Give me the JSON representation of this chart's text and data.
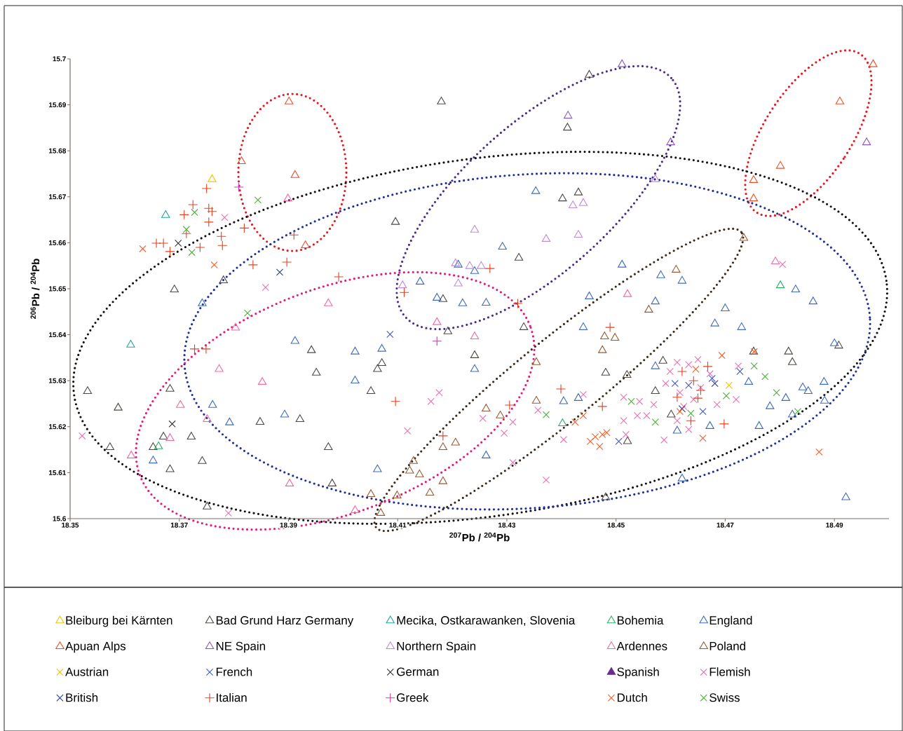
{
  "chart_data": {
    "type": "scatter",
    "xlabel": "$^{207}$Pb / $^{204}$Pb",
    "ylabel": "$^{206}$Pb / $^{204}$Pb",
    "xlim": [
      18.35,
      18.5
    ],
    "ylim": [
      15.6,
      15.7
    ],
    "xticks": [
      18.35,
      18.37,
      18.39,
      18.41,
      18.43,
      18.45,
      18.47,
      18.49
    ],
    "yticks": [
      15.6,
      15.61,
      15.62,
      15.63,
      15.64,
      15.65,
      15.66,
      15.67,
      15.68,
      15.69,
      15.7
    ],
    "grid": false,
    "legend": "bottom",
    "series": [
      {
        "name": "Bleiburg bei Kärnten",
        "color": "#f5c400",
        "marker": "triangle",
        "x": [
          18.376
        ],
        "values": [
          15.6738
        ]
      },
      {
        "name": "Bad Grund Harz Germany",
        "color": "#4d4a45",
        "marker": "triangle",
        "x": [
          18.418,
          18.4451,
          18.4411,
          18.4096,
          18.4402,
          18.4431,
          18.4322,
          18.3781,
          18.3691,
          18.4183,
          18.4192,
          18.4241,
          18.4071,
          18.4063,
          18.4051,
          18.3942,
          18.3951,
          18.3532,
          18.3588,
          18.3683,
          18.3573,
          18.3652,
          18.3671,
          18.3722,
          18.3742,
          18.3683,
          18.3848,
          18.3921,
          18.3973,
          18.398,
          18.3751,
          18.4481,
          18.4481,
          18.4586,
          18.452,
          18.4572,
          18.4601,
          18.4521,
          18.4752,
          18.4816,
          18.4823,
          18.4908,
          18.4331
        ],
        "values": [
          15.6907,
          15.6965,
          15.685,
          15.6645,
          15.6696,
          15.6709,
          15.6567,
          15.6518,
          15.6498,
          15.6477,
          15.6407,
          15.6355,
          15.6338,
          15.6325,
          15.6277,
          15.6366,
          15.6317,
          15.6277,
          15.6241,
          15.6282,
          15.6155,
          15.6155,
          15.6178,
          15.6178,
          15.6125,
          15.6107,
          15.621,
          15.6216,
          15.6155,
          15.6076,
          15.6026,
          15.6317,
          15.6046,
          15.6343,
          15.6312,
          15.6277,
          15.6226,
          15.6168,
          15.6363,
          15.6363,
          15.634,
          15.6376,
          15.6416
        ]
      },
      {
        "name": "Mecika, Ostkarawanken, Slovenia",
        "color": "#1fa59e",
        "marker": "triangle",
        "x": [
          18.3675,
          18.3611
        ],
        "values": [
          15.666,
          15.6378
        ]
      },
      {
        "name": "Bohemia",
        "color": "#2bae6a",
        "marker": "triangle",
        "x": [
          18.3662,
          18.4402,
          18.4801
        ],
        "values": [
          15.6157,
          15.6207,
          15.6507
        ]
      },
      {
        "name": "England",
        "color": "#3e6cc0",
        "marker": "triangle",
        "x": [
          18.4353,
          18.4292,
          18.4211,
          18.4241,
          18.4141,
          18.4219,
          18.4262,
          18.4172,
          18.4451,
          18.444,
          18.4511,
          18.4582,
          18.4621,
          18.4572,
          18.47,
          18.4681,
          18.473,
          18.4572,
          18.4743,
          18.4782,
          18.4811,
          18.4842,
          18.4852,
          18.4881,
          18.4882,
          18.4823,
          18.4762,
          18.4672,
          18.4612,
          18.4621,
          18.4921,
          18.49,
          18.4861,
          18.4829,
          18.3742,
          18.3912,
          18.3761,
          18.3792,
          18.3893,
          18.3652,
          18.4022,
          18.4071,
          18.4022,
          18.4241,
          18.4404,
          18.4431,
          18.4262,
          18.4063
        ],
        "values": [
          15.6712,
          15.6591,
          15.6552,
          15.6538,
          15.6515,
          15.6468,
          15.6469,
          15.648,
          15.6483,
          15.6416,
          15.6552,
          15.6529,
          15.6517,
          15.6472,
          15.6457,
          15.6424,
          15.6416,
          15.6331,
          15.6297,
          15.6244,
          15.6262,
          15.6285,
          15.6277,
          15.6297,
          15.6256,
          15.6226,
          15.6201,
          15.6201,
          15.6191,
          15.6087,
          15.6046,
          15.6381,
          15.6472,
          15.6498,
          15.6468,
          15.6386,
          15.6247,
          15.6209,
          15.6226,
          15.6126,
          15.6363,
          15.6369,
          15.63,
          15.6325,
          15.6255,
          15.6262,
          15.6137,
          15.6107
        ]
      },
      {
        "name": "Apuan Alps",
        "color": "#e8502a",
        "marker": "triangle",
        "x": [
          18.3901,
          18.3814,
          18.3912,
          18.3931,
          18.4971,
          18.491,
          18.4801,
          18.4752,
          18.4752
        ],
        "values": [
          15.6907,
          15.6777,
          15.6747,
          15.6594,
          15.6988,
          15.6907,
          15.6767,
          15.6736,
          15.6696
        ]
      },
      {
        "name": "NE Spain",
        "color": "#8a5bb8",
        "marker": "triangle",
        "x": [
          18.4511,
          18.4412,
          18.4959,
          18.46
        ],
        "values": [
          15.6988,
          15.6876,
          15.6818,
          15.6818
        ]
      },
      {
        "name": "Northern Spain",
        "color": "#c08cd6",
        "marker": "triangle",
        "x": [
          18.4372,
          18.4431,
          18.4421,
          18.444,
          18.4241,
          18.4572,
          18.4206,
          18.4232,
          18.4253,
          18.4211,
          18.4109
        ],
        "values": [
          15.6608,
          15.6617,
          15.6681,
          15.6686,
          15.6628,
          15.6738,
          15.6555,
          15.6549,
          15.6549,
          15.6511,
          15.6507
        ]
      },
      {
        "name": "Ardennes",
        "color": "#ef6aa8",
        "marker": "triangle",
        "x": [
          18.3899,
          18.3973,
          18.3803,
          18.3773,
          18.3852,
          18.3702,
          18.3751,
          18.3683,
          18.3612,
          18.3902,
          18.4022,
          18.4172,
          18.4241,
          18.4792,
          18.4521
        ],
        "values": [
          15.6696,
          15.6468,
          15.6415,
          15.6325,
          15.6297,
          15.6247,
          15.6216,
          15.6175,
          15.6137,
          15.6076,
          15.6018,
          15.6427,
          15.6396,
          15.6559,
          15.6488
        ]
      },
      {
        "name": "Poland",
        "color": "#9a5a35",
        "marker": "triangle",
        "x": [
          18.4479,
          18.4498,
          18.4475,
          18.4354,
          18.4354,
          18.4262,
          18.4288,
          18.4183,
          18.4206,
          18.4129,
          18.4122,
          18.414,
          18.4183,
          18.4159,
          18.4051,
          18.4099,
          18.4069,
          18.4734,
          18.461,
          18.456
        ],
        "values": [
          15.6396,
          15.6393,
          15.6366,
          15.634,
          15.6256,
          15.6239,
          15.6224,
          15.6155,
          15.6165,
          15.6125,
          15.6104,
          15.6096,
          15.6081,
          15.6056,
          15.6053,
          15.605,
          15.6012,
          15.661,
          15.6541,
          15.6454
        ]
      },
      {
        "name": "Austrian",
        "color": "#f2c200",
        "marker": "cross",
        "x": [
          18.4707
        ],
        "values": [
          15.629
        ]
      },
      {
        "name": "French",
        "color": "#3c5ac8",
        "marker": "cross",
        "x": [
          18.4086,
          18.4633,
          18.4676,
          18.4727,
          18.4659,
          18.4608,
          18.4505
        ],
        "values": [
          15.6401,
          15.629,
          15.6305,
          15.632,
          15.6233,
          15.6294,
          15.6168
        ]
      },
      {
        "name": "German",
        "color": "#333333",
        "marker": "cross",
        "x": [
          18.3698,
          18.3687
        ],
        "values": [
          15.6599,
          15.6206
        ]
      },
      {
        "name": "Spanish",
        "color": "#6a2d8f",
        "marker": "filled_triangle"
      },
      {
        "name": "Flemish",
        "color": "#ec6fb3",
        "marker": "cross",
        "x": [
          18.3522,
          18.3783,
          18.3858,
          18.379,
          18.4176,
          18.4161,
          18.4118,
          18.4256,
          18.4311,
          18.4295,
          18.4311,
          18.4372,
          18.4404,
          18.4357,
          18.444,
          18.4514,
          18.4543,
          18.4556,
          18.4514,
          18.4518,
          18.4588,
          18.4599,
          18.4612,
          18.4633,
          18.465,
          18.4591,
          18.4617,
          18.4642,
          18.4624,
          18.4612,
          18.4633,
          18.4685,
          18.472,
          18.4724,
          18.4672,
          18.4569,
          18.4539,
          18.4655,
          18.4805
        ],
        "values": [
          15.618,
          15.6655,
          15.6503,
          15.6012,
          15.6274,
          15.6255,
          15.6191,
          15.6218,
          15.621,
          15.6186,
          15.6122,
          15.6084,
          15.6172,
          15.6236,
          15.627,
          15.6264,
          15.6255,
          15.6224,
          15.6213,
          15.6183,
          15.6171,
          15.632,
          15.634,
          15.6335,
          15.6346,
          15.6294,
          15.6274,
          15.6259,
          15.6244,
          15.6213,
          15.6194,
          15.6248,
          15.6259,
          15.6332,
          15.6315,
          15.6248,
          15.6224,
          15.6285,
          15.6553
        ]
      },
      {
        "name": "British",
        "color": "#2e3d8f",
        "marker": "cross",
        "x": [
          18.3884,
          18.4621,
          18.4681
        ],
        "values": [
          15.6536,
          15.6239,
          15.6294
        ]
      },
      {
        "name": "Italian",
        "color": "#e8401c",
        "marker": "plus",
        "x": [
          18.375,
          18.3725,
          18.3709,
          18.3754,
          18.376,
          18.3754,
          18.3658,
          18.3671,
          18.3683,
          18.3713,
          18.3738,
          18.3777,
          18.3779,
          18.3819,
          18.391,
          18.3897,
          18.3835,
          18.3992,
          18.3728,
          18.3749,
          18.432,
          18.4096,
          18.4183,
          18.4305,
          18.4399,
          18.4475,
          18.4489,
          18.4269,
          18.4112,
          18.4621,
          18.4668,
          18.4642,
          18.4655,
          18.4612,
          18.4698,
          18.4637,
          18.465
        ],
        "values": [
          15.6718,
          15.6683,
          15.6661,
          15.6675,
          15.6668,
          15.6645,
          15.6599,
          15.6599,
          15.6581,
          15.662,
          15.659,
          15.6614,
          15.6594,
          15.6632,
          15.6617,
          15.6558,
          15.6552,
          15.6526,
          15.6369,
          15.6369,
          15.6468,
          15.6255,
          15.618,
          15.6247,
          15.6282,
          15.6244,
          15.6416,
          15.6544,
          15.6492,
          15.632,
          15.6331,
          15.63,
          15.6279,
          15.6264,
          15.6206,
          15.6213,
          15.6262
        ]
      },
      {
        "name": "Greek",
        "color": "#c43ab3",
        "marker": "plus",
        "x": [
          18.3809,
          18.4172
        ],
        "values": [
          15.6721,
          15.6386
        ]
      },
      {
        "name": "Dutch",
        "color": "#f0602a",
        "marker": "cross",
        "x": [
          18.3633,
          18.3764,
          18.4694,
          18.4753,
          18.4646,
          18.4617,
          18.4659,
          18.4872,
          18.4425,
          18.4462,
          18.4475,
          18.4453,
          18.447,
          18.4483,
          18.444
        ],
        "values": [
          15.6587,
          15.6552,
          15.6355,
          15.6363,
          15.6325,
          15.6233,
          15.6175,
          15.6145,
          15.621,
          15.6178,
          15.6183,
          15.6168,
          15.6157,
          15.6187,
          15.6224
        ]
      },
      {
        "name": "Swiss",
        "color": "#4caf3a",
        "marker": "cross",
        "x": [
          18.3844,
          18.3728,
          18.3713,
          18.3723,
          18.3825,
          18.4372,
          18.4528,
          18.4572,
          18.4753,
          18.4773,
          18.4794,
          18.4833,
          18.4702,
          18.4637
        ],
        "values": [
          15.6693,
          15.6666,
          15.6629,
          15.6579,
          15.6447,
          15.6226,
          15.6255,
          15.621,
          15.6332,
          15.6309,
          15.6274,
          15.6233,
          15.6267,
          15.6229
        ]
      }
    ]
  }
}
